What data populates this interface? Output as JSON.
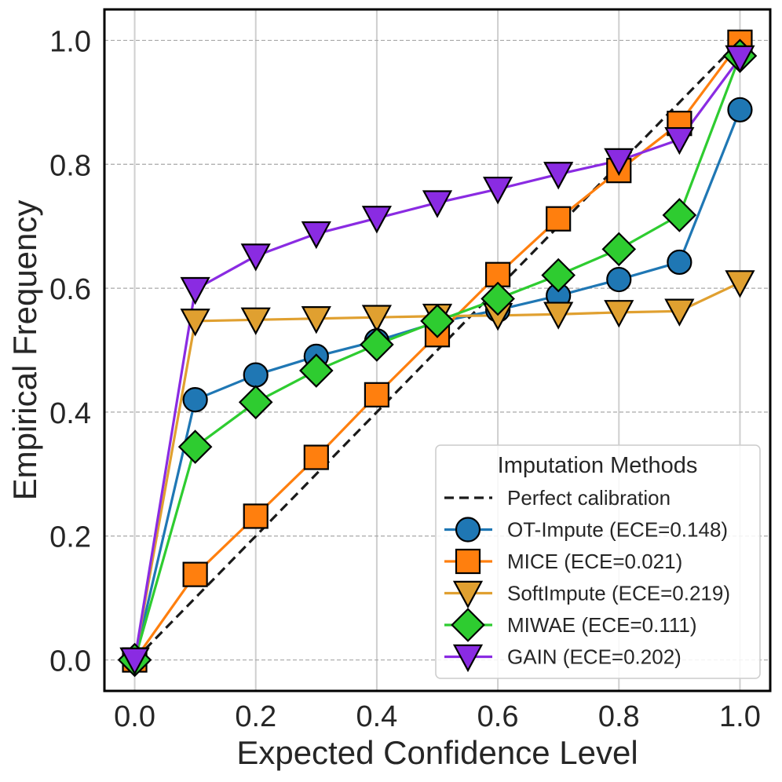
{
  "chart_data": {
    "type": "line",
    "xlabel": "Expected Confidence Level",
    "ylabel": "Empirical Frequency",
    "xlim": [
      -0.05,
      1.05
    ],
    "ylim": [
      -0.05,
      1.05
    ],
    "xticks": [
      "0.0",
      "0.2",
      "0.4",
      "0.6",
      "0.8",
      "1.0"
    ],
    "yticks": [
      "0.0",
      "0.2",
      "0.4",
      "0.6",
      "0.8",
      "1.0"
    ],
    "grid": true,
    "legend": {
      "title": "Imputation Methods",
      "placement": "lower-right"
    },
    "reference": {
      "name": "Perfect calibration",
      "x": [
        0,
        1
      ],
      "y": [
        0,
        1
      ],
      "color": "#1a1a1a",
      "style": "dashed"
    },
    "x": [
      0.0,
      0.1,
      0.2,
      0.3,
      0.4,
      0.5,
      0.6,
      0.7,
      0.8,
      0.9,
      1.0
    ],
    "series": [
      {
        "name": "OT-Impute (ECE=0.148)",
        "color": "#1f77b4",
        "marker": "circle",
        "values": [
          0.0,
          0.42,
          0.46,
          0.49,
          0.515,
          0.545,
          0.565,
          0.588,
          0.614,
          0.642,
          0.888
        ]
      },
      {
        "name": "MICE (ECE=0.021)",
        "color": "#ff7f0e",
        "marker": "square",
        "values": [
          0.0,
          0.138,
          0.232,
          0.327,
          0.428,
          0.525,
          0.622,
          0.712,
          0.79,
          0.866,
          0.997
        ]
      },
      {
        "name": "SoftImpute (ECE=0.219)",
        "color": "#e0a030",
        "marker": "triangle-down",
        "values": [
          0.0,
          0.547,
          0.549,
          0.551,
          0.553,
          0.555,
          0.556,
          0.558,
          0.561,
          0.563,
          0.609
        ]
      },
      {
        "name": "MIWAE (ECE=0.111)",
        "color": "#2ecc30",
        "marker": "diamond",
        "values": [
          0.0,
          0.344,
          0.416,
          0.467,
          0.509,
          0.547,
          0.583,
          0.621,
          0.663,
          0.718,
          0.975
        ]
      },
      {
        "name": "GAIN (ECE=0.202)",
        "color": "#8a2be2",
        "marker": "triangle-down",
        "values": [
          0.0,
          0.598,
          0.652,
          0.688,
          0.713,
          0.738,
          0.76,
          0.784,
          0.806,
          0.84,
          0.972
        ]
      }
    ]
  }
}
